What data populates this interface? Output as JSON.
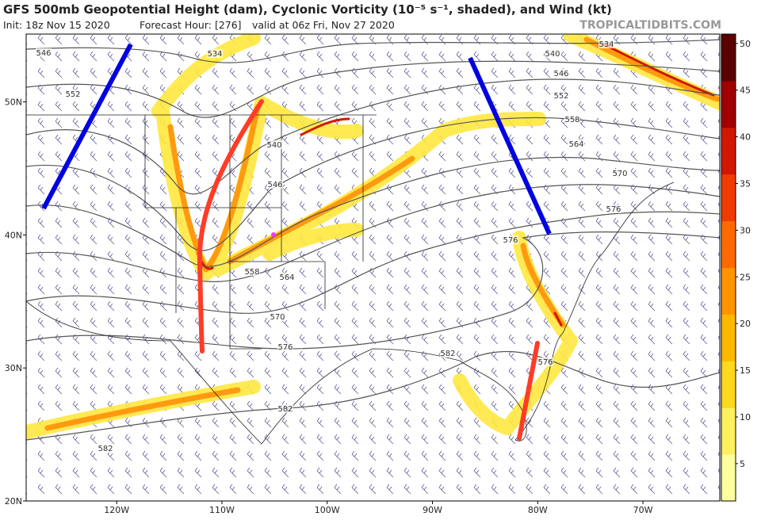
{
  "header": {
    "title": "GFS 500mb Geopotential Height (dam), Cyclonic Vorticity (10⁻⁵ s⁻¹, shaded), and Wind (kt)",
    "init": "Init: 18z Nov 15 2020",
    "forecast_hour": "Forecast Hour: [276]",
    "valid": "valid at 06z Fri, Nov 27 2020",
    "source": "TROPICALTIDBITS.COM"
  },
  "map": {
    "lon_range": [
      -128.6,
      -62.7
    ],
    "lat_range": [
      20,
      55.1
    ],
    "lon_ticks": [
      {
        "value": -120,
        "label": "120W"
      },
      {
        "value": -110,
        "label": "110W"
      },
      {
        "value": -100,
        "label": "100W"
      },
      {
        "value": -90,
        "label": "90W"
      },
      {
        "value": -80,
        "label": "80W"
      },
      {
        "value": -70,
        "label": "70W"
      }
    ],
    "lat_ticks": [
      {
        "value": 20,
        "label": "20N"
      },
      {
        "value": 30,
        "label": "30N"
      },
      {
        "value": 40,
        "label": "40N"
      },
      {
        "value": 50,
        "label": "50N"
      }
    ],
    "contour_labels": [
      546,
      552,
      534,
      540,
      546,
      558,
      564,
      570,
      576,
      582,
      576,
      582,
      582,
      534,
      540,
      546,
      552,
      558,
      564,
      570,
      576,
      576
    ]
  },
  "colorbar": {
    "range": [
      1,
      51
    ],
    "ticks": [
      5,
      10,
      15,
      20,
      25,
      30,
      35,
      40,
      45,
      50
    ],
    "colors": [
      "#ffffa0",
      "#fff060",
      "#ffd820",
      "#ffb800",
      "#ff9400",
      "#ff6a00",
      "#f03c00",
      "#d01800",
      "#a00000",
      "#5a0000"
    ]
  }
}
